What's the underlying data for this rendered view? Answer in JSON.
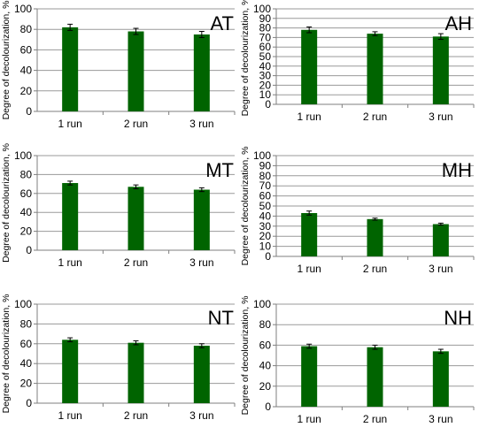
{
  "chart_data": [
    {
      "type": "bar",
      "title": "AT",
      "categories": [
        "1 run",
        "2 run",
        "3 run"
      ],
      "values": [
        82,
        78,
        75
      ],
      "errors": [
        3,
        3,
        3
      ],
      "ylabel": "Degree of decolourization, %",
      "ylim": [
        0,
        100
      ],
      "yticks": [
        "0",
        "20",
        "40",
        "60",
        "80",
        "100"
      ],
      "grid": true,
      "bar_color": "#006400"
    },
    {
      "type": "bar",
      "title": "AH",
      "categories": [
        "1 run",
        "2 run",
        "3 run"
      ],
      "values": [
        78,
        74,
        71
      ],
      "errors": [
        3,
        2,
        3
      ],
      "ylabel": "Degree of decolourization, %",
      "ylim": [
        0,
        100
      ],
      "yticks": [
        "0",
        "10",
        "20",
        "30",
        "40",
        "50",
        "60",
        "70",
        "80",
        "90",
        "100"
      ],
      "grid": true,
      "bar_color": "#006400"
    },
    {
      "type": "bar",
      "title": "MT",
      "categories": [
        "1 run",
        "2 run",
        "3 run"
      ],
      "values": [
        71,
        67,
        64
      ],
      "errors": [
        2,
        2,
        2
      ],
      "ylabel": "Degree of decolourization, %",
      "ylim": [
        0,
        100
      ],
      "yticks": [
        "0",
        "20",
        "40",
        "60",
        "80",
        "100"
      ],
      "grid": true,
      "bar_color": "#006400"
    },
    {
      "type": "bar",
      "title": "MH",
      "categories": [
        "1 run",
        "2 run",
        "3 run"
      ],
      "values": [
        43,
        37,
        32
      ],
      "errors": [
        2,
        1,
        1
      ],
      "ylabel": "Degree of decolourization, %",
      "ylim": [
        0,
        100
      ],
      "yticks": [
        "0",
        "10",
        "20",
        "30",
        "40",
        "50",
        "60",
        "70",
        "80",
        "90",
        "100"
      ],
      "grid": true,
      "bar_color": "#006400"
    },
    {
      "type": "bar",
      "title": "NT",
      "categories": [
        "1 run",
        "2 run",
        "3 run"
      ],
      "values": [
        64,
        61,
        58
      ],
      "errors": [
        2,
        2,
        2
      ],
      "ylabel": "Degree of decolourization, %",
      "ylim": [
        0,
        100
      ],
      "yticks": [
        "0",
        "20",
        "40",
        "60",
        "80",
        "100"
      ],
      "grid": true,
      "bar_color": "#006400"
    },
    {
      "type": "bar",
      "title": "NH",
      "categories": [
        "1 run",
        "2 run",
        "3 run"
      ],
      "values": [
        59,
        58,
        54
      ],
      "errors": [
        2,
        2,
        2
      ],
      "ylabel": "Degree of decolourization, %",
      "ylim": [
        0,
        100
      ],
      "yticks": [
        "0",
        "20",
        "40",
        "60",
        "80",
        "100"
      ],
      "grid": true,
      "bar_color": "#006400"
    }
  ]
}
